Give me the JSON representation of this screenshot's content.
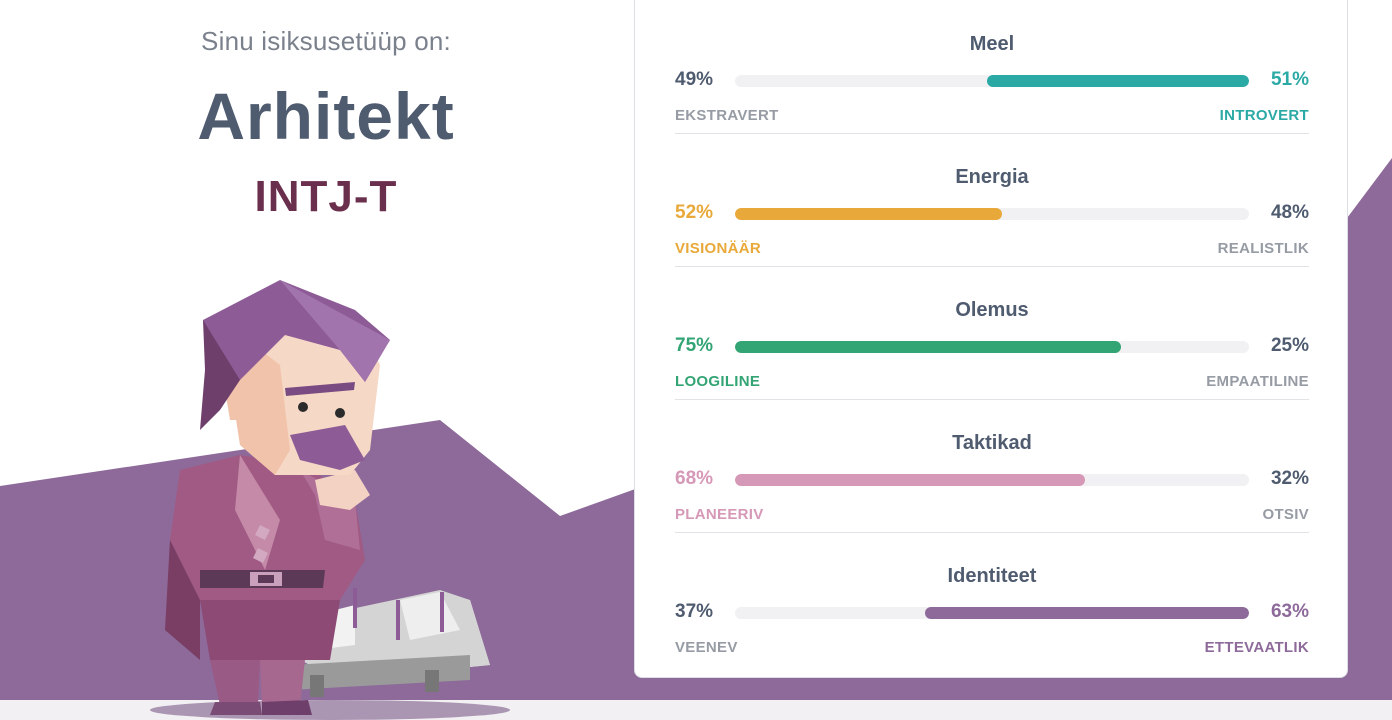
{
  "result": {
    "intro": "Sinu isiksusetüüp on:",
    "type_name": "Arhitekt",
    "type_code": "INTJ-T"
  },
  "colors": {
    "teal": "#2ba9a5",
    "yellow": "#e9a93a",
    "green": "#33a474",
    "pink": "#d698b7",
    "purple": "#8d6a9a",
    "neutral": "#4f5b6f",
    "muted": "#969ba4"
  },
  "traits": [
    {
      "title": "Meel",
      "left_pct": "49%",
      "right_pct": "51%",
      "left_label": "EKSTRAVERT",
      "right_label": "INTROVERT",
      "value": 0.51,
      "dominant": "right",
      "color": "#2ba9a5"
    },
    {
      "title": "Energia",
      "left_pct": "52%",
      "right_pct": "48%",
      "left_label": "VISIONÄÄR",
      "right_label": "REALISTLIK",
      "value": 0.52,
      "dominant": "left",
      "color": "#e9a93a"
    },
    {
      "title": "Olemus",
      "left_pct": "75%",
      "right_pct": "25%",
      "left_label": "LOOGILINE",
      "right_label": "EMPAATILINE",
      "value": 0.75,
      "dominant": "left",
      "color": "#33a474"
    },
    {
      "title": "Taktikad",
      "left_pct": "68%",
      "right_pct": "32%",
      "left_label": "PLANEERIV",
      "right_label": "OTSIV",
      "value": 0.68,
      "dominant": "left",
      "color": "#d698b7"
    },
    {
      "title": "Identiteet",
      "left_pct": "37%",
      "right_pct": "63%",
      "left_label": "VEENEV",
      "right_label": "ETTEVAATLIK",
      "value": 0.63,
      "dominant": "right",
      "color": "#8d6a9a"
    }
  ]
}
